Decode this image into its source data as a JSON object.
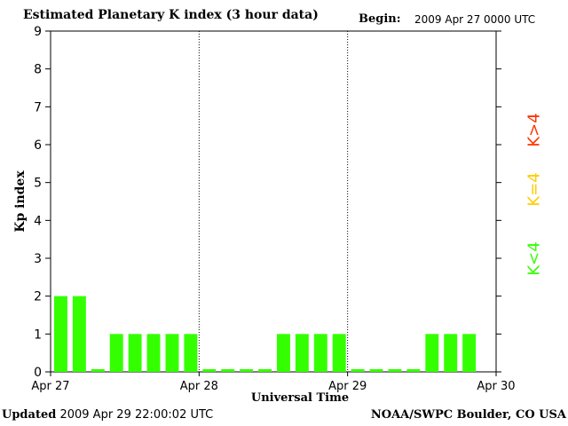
{
  "header": {
    "title": "Estimated Planetary K index (3 hour data)",
    "begin_label": "Begin:",
    "begin_value": "2009 Apr 27 0000 UTC"
  },
  "footer": {
    "updated_label": "Updated",
    "updated_value": "2009 Apr 29 22:00:02 UTC",
    "source": "NOAA/SWPC Boulder, CO USA"
  },
  "legend": {
    "high": {
      "label": "K>4",
      "color": "#ff3300"
    },
    "mid": {
      "label": "K=4",
      "color": "#ffcc00"
    },
    "low": {
      "label": "K<4",
      "color": "#33ff00"
    }
  },
  "chart_data": {
    "type": "bar",
    "title": "Estimated Planetary K index (3 hour data)",
    "xlabel": "Universal Time",
    "ylabel": "Kp index",
    "ylim": [
      0,
      9
    ],
    "yticks": [
      0,
      1,
      2,
      3,
      4,
      5,
      6,
      7,
      8,
      9
    ],
    "x_tick_labels": [
      "Apr 27",
      "Apr 28",
      "Apr 29",
      "Apr 30"
    ],
    "grid": "vertical dotted lines at day boundaries",
    "bar_color": "#33ff00",
    "values": [
      2,
      2,
      0,
      1,
      1,
      1,
      1,
      1,
      0,
      0,
      0,
      0,
      1,
      1,
      1,
      1,
      0,
      0,
      0,
      0,
      1,
      1,
      1
    ]
  }
}
